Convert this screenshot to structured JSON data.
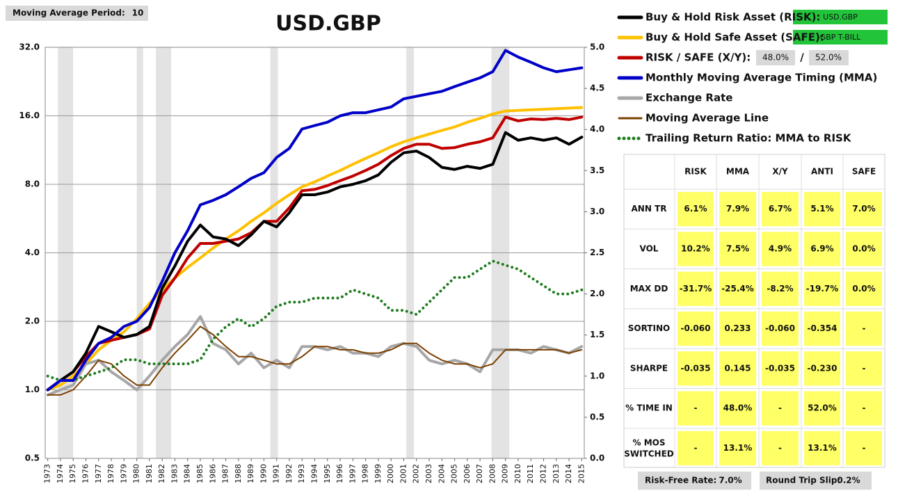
{
  "chart_data": {
    "type": "line",
    "title": "USD.GBP",
    "log_scale": true,
    "grid": true,
    "xlim": [
      1972.8,
      2015.2
    ],
    "xticks": [
      1973,
      1974,
      1975,
      1976,
      1977,
      1978,
      1979,
      1980,
      1981,
      1982,
      1983,
      1984,
      1985,
      1986,
      1987,
      1988,
      1989,
      1990,
      1991,
      1992,
      1993,
      1994,
      1995,
      1996,
      1997,
      1998,
      1999,
      2000,
      2001,
      2002,
      2003,
      2004,
      2005,
      2006,
      2007,
      2008,
      2009,
      2010,
      2011,
      2012,
      2013,
      2014,
      2015
    ],
    "ylim": [
      0.5,
      32
    ],
    "yticks": [
      {
        "value": 0.5,
        "label": "0.5"
      },
      {
        "value": 1,
        "label": "1.0"
      },
      {
        "value": 2,
        "label": "2.0"
      },
      {
        "value": 4,
        "label": "4.0"
      },
      {
        "value": 8,
        "label": "8.0"
      },
      {
        "value": 16,
        "label": "16.0"
      },
      {
        "value": 32,
        "label": "32.0"
      }
    ],
    "y2lim": [
      0,
      5
    ],
    "y2ticks": [
      {
        "value": 0,
        "label": "0.0"
      },
      0.5,
      {
        "value": 1,
        "label": "1.0"
      },
      1.5,
      {
        "value": 2,
        "label": "2.0"
      },
      2.5,
      {
        "value": 3,
        "label": "3.0"
      },
      3.5,
      {
        "value": 4,
        "label": "4.0"
      },
      4.5,
      {
        "value": 5,
        "label": "5.0"
      }
    ],
    "shaded_ranges": [
      [
        1973.8,
        1975.0
      ],
      [
        1980.0,
        1980.5
      ],
      [
        1981.5,
        1982.7
      ],
      [
        1990.5,
        1991.1
      ],
      [
        2001.2,
        2001.8
      ],
      [
        2007.9,
        2009.3
      ]
    ],
    "x": [
      1973,
      1974,
      1975,
      1976,
      1977,
      1978,
      1979,
      1980,
      1981,
      1982,
      1983,
      1984,
      1985,
      1986,
      1987,
      1988,
      1989,
      1990,
      1991,
      1992,
      1993,
      1994,
      1995,
      1996,
      1997,
      1998,
      1999,
      2000,
      2001,
      2002,
      2003,
      2004,
      2005,
      2006,
      2007,
      2008,
      2009,
      2010,
      2011,
      2012,
      2013,
      2014,
      2015
    ],
    "series": [
      {
        "name": "Buy & Hold Safe Asset (SAFE):",
        "color": "#ffc000",
        "width": 4,
        "values": [
          1.0,
          1.05,
          1.15,
          1.3,
          1.5,
          1.65,
          1.8,
          2.05,
          2.4,
          2.75,
          3.1,
          3.45,
          3.8,
          4.2,
          4.6,
          5.0,
          5.5,
          6.0,
          6.6,
          7.2,
          7.8,
          8.2,
          8.7,
          9.2,
          9.8,
          10.4,
          11.0,
          11.7,
          12.3,
          12.8,
          13.3,
          13.8,
          14.3,
          15.0,
          15.6,
          16.3,
          16.8,
          16.9,
          17.0,
          17.1,
          17.2,
          17.3,
          17.4
        ]
      },
      {
        "name": "Exchange Rate",
        "color": "#a6a6a6",
        "width": 4,
        "values": [
          0.95,
          1.0,
          1.05,
          1.3,
          1.35,
          1.2,
          1.1,
          1.0,
          1.15,
          1.35,
          1.55,
          1.75,
          2.1,
          1.6,
          1.5,
          1.3,
          1.45,
          1.25,
          1.35,
          1.25,
          1.55,
          1.55,
          1.5,
          1.55,
          1.45,
          1.45,
          1.4,
          1.55,
          1.6,
          1.55,
          1.35,
          1.3,
          1.35,
          1.3,
          1.2,
          1.5,
          1.5,
          1.5,
          1.45,
          1.55,
          1.5,
          1.45,
          1.55
        ]
      },
      {
        "name": "Moving Average Line",
        "color": "#7b3f00",
        "width": 2,
        "values": [
          0.95,
          0.95,
          1.0,
          1.15,
          1.35,
          1.3,
          1.15,
          1.05,
          1.05,
          1.25,
          1.45,
          1.65,
          1.9,
          1.75,
          1.55,
          1.4,
          1.4,
          1.35,
          1.3,
          1.3,
          1.4,
          1.55,
          1.55,
          1.5,
          1.5,
          1.45,
          1.45,
          1.5,
          1.6,
          1.6,
          1.45,
          1.35,
          1.3,
          1.3,
          1.25,
          1.3,
          1.5,
          1.5,
          1.5,
          1.5,
          1.5,
          1.45,
          1.5
        ]
      },
      {
        "name": "Trailing Return Ratio: MMA to RISK",
        "color": "#1e7b1e",
        "width": 4,
        "dotted": true,
        "axis": "y2",
        "values": [
          1.0,
          0.95,
          0.95,
          1.0,
          1.05,
          1.1,
          1.2,
          1.2,
          1.15,
          1.15,
          1.15,
          1.15,
          1.2,
          1.45,
          1.6,
          1.7,
          1.6,
          1.7,
          1.85,
          1.9,
          1.9,
          1.95,
          1.95,
          1.95,
          2.05,
          2.0,
          1.95,
          1.8,
          1.8,
          1.75,
          1.9,
          2.05,
          2.2,
          2.2,
          2.3,
          2.4,
          2.35,
          2.3,
          2.2,
          2.1,
          2.0,
          2.0,
          2.05
        ]
      },
      {
        "name": "RISK / SAFE (X/Y):",
        "color": "#c00000",
        "width": 4,
        "values": [
          1.0,
          1.1,
          1.2,
          1.4,
          1.6,
          1.65,
          1.7,
          1.75,
          1.85,
          2.6,
          3.1,
          3.8,
          4.4,
          4.4,
          4.5,
          4.6,
          4.9,
          5.5,
          5.5,
          6.3,
          7.5,
          7.6,
          7.9,
          8.3,
          8.7,
          9.2,
          9.8,
          10.7,
          11.5,
          12.0,
          12.0,
          11.5,
          11.6,
          12.0,
          12.3,
          12.8,
          15.8,
          15.2,
          15.5,
          15.4,
          15.6,
          15.4,
          15.8
        ]
      },
      {
        "name": "Buy & Hold Risk Asset (RISK):",
        "color": "#000000",
        "width": 4,
        "values": [
          1.0,
          1.1,
          1.2,
          1.45,
          1.9,
          1.8,
          1.7,
          1.75,
          1.9,
          2.8,
          3.5,
          4.5,
          5.3,
          4.7,
          4.6,
          4.3,
          4.8,
          5.5,
          5.2,
          6.0,
          7.2,
          7.2,
          7.4,
          7.8,
          8.0,
          8.3,
          8.8,
          10.0,
          11.0,
          11.2,
          10.5,
          9.5,
          9.3,
          9.6,
          9.4,
          9.8,
          13.5,
          12.5,
          12.8,
          12.5,
          12.8,
          12.0,
          12.9
        ]
      },
      {
        "name": "Monthly Moving Average Timing (MMA)",
        "color": "#0000c8",
        "width": 4,
        "values": [
          1.0,
          1.1,
          1.1,
          1.35,
          1.6,
          1.7,
          1.9,
          2.0,
          2.3,
          3.0,
          4.0,
          5.0,
          6.5,
          6.8,
          7.2,
          7.8,
          8.5,
          9.0,
          10.5,
          11.5,
          14.0,
          14.5,
          15.0,
          16.0,
          16.5,
          16.5,
          17.0,
          17.5,
          19.0,
          19.5,
          20.0,
          20.5,
          21.5,
          22.5,
          23.5,
          25.0,
          31.0,
          29.0,
          27.5,
          26.0,
          25.0,
          25.5,
          26.0
        ]
      }
    ]
  },
  "legend_order": [
    5,
    0,
    4,
    6,
    1,
    2,
    3
  ],
  "controls": {
    "ma_period_label": "Moving Average Period:",
    "ma_period": "10",
    "risk_asset": "USD.GBP",
    "safe_asset": "GBP T-BILL",
    "x_weight": "48.0%",
    "separator": "/",
    "y_weight": "52.0%",
    "risk_free_label": "Risk-Free Rate:",
    "risk_free": "7.0%",
    "slip_label": "Round Trip Slip:",
    "slip": "0.2%"
  },
  "table": {
    "columns": [
      "RISK",
      "MMA",
      "X/Y",
      "ANTI",
      "SAFE"
    ],
    "rows": [
      {
        "label": "ANN TR",
        "cells": [
          "6.1%",
          "7.9%",
          "6.7%",
          "5.1%",
          "7.0%"
        ]
      },
      {
        "label": "VOL",
        "cells": [
          "10.2%",
          "7.5%",
          "4.9%",
          "6.9%",
          "0.0%"
        ]
      },
      {
        "label": "MAX DD",
        "cells": [
          "-31.7%",
          "-25.4%",
          "-8.2%",
          "-19.7%",
          "0.0%"
        ]
      },
      {
        "label": "SORTINO",
        "cells": [
          "-0.060",
          "0.233",
          "-0.060",
          "-0.354",
          "-"
        ]
      },
      {
        "label": "SHARPE",
        "cells": [
          "-0.035",
          "0.145",
          "-0.035",
          "-0.230",
          "-"
        ]
      },
      {
        "label": "% TIME IN",
        "cells": [
          "-",
          "48.0%",
          "-",
          "52.0%",
          "-"
        ]
      },
      {
        "label": "% MOS SWITCHED",
        "cells": [
          "-",
          "13.1%",
          "-",
          "13.1%",
          "-"
        ]
      }
    ]
  }
}
